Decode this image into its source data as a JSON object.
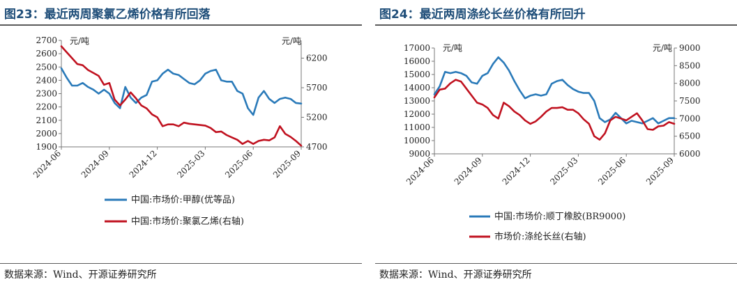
{
  "panels": [
    {
      "title": "图23：最近两周聚氯乙烯价格有所回落",
      "source": "数据来源：Wind、开源证券研究所",
      "unit_left": "元/吨",
      "unit_right": "元/吨",
      "colors": {
        "series0": "#2a7ab9",
        "series1": "#c0111f"
      }
    },
    {
      "title": "图24：最近两周涤纶长丝价格有所回升",
      "source": "数据来源：Wind、开源证券研究所",
      "unit_left": "元/吨",
      "unit_right": "元/吨",
      "colors": {
        "series0": "#2a7ab9",
        "series1": "#c0111f"
      }
    }
  ],
  "chart_data": [
    {
      "type": "line",
      "title": "",
      "x_tick_labels": [
        "2024-06",
        "2024-09",
        "2024-12",
        "2025-03",
        "2025-06",
        "2025-09"
      ],
      "ylim_left": [
        1900,
        2700
      ],
      "yticks_left": [
        1900,
        2000,
        2100,
        2200,
        2300,
        2400,
        2500,
        2600,
        2700
      ],
      "ylim_right": [
        4700,
        6500
      ],
      "yticks_right": [
        4700,
        5200,
        5700,
        6200
      ],
      "grid": false,
      "legend_position": "bottom",
      "series": [
        {
          "name": "中国:市场价:甲醇(优等品)",
          "axis": "left",
          "values": [
            2490,
            2420,
            2360,
            2360,
            2380,
            2350,
            2330,
            2300,
            2330,
            2300,
            2230,
            2190,
            2350,
            2270,
            2230,
            2270,
            2290,
            2390,
            2400,
            2450,
            2480,
            2450,
            2440,
            2410,
            2380,
            2370,
            2400,
            2450,
            2470,
            2480,
            2400,
            2390,
            2390,
            2320,
            2300,
            2190,
            2140,
            2270,
            2320,
            2260,
            2230,
            2260,
            2270,
            2260,
            2230,
            2225
          ]
        },
        {
          "name": "中国:市场价:聚氯乙烯(右轴)",
          "axis": "right",
          "values": [
            6400,
            6300,
            6200,
            6100,
            6080,
            6000,
            5950,
            5900,
            5750,
            5780,
            5500,
            5400,
            5500,
            5620,
            5520,
            5400,
            5350,
            5250,
            5200,
            5050,
            5080,
            5080,
            5050,
            5110,
            5090,
            5080,
            5070,
            5060,
            5020,
            4950,
            4960,
            4900,
            4860,
            4820,
            4750,
            4800,
            4750,
            4800,
            4820,
            4810,
            4860,
            5050,
            4920,
            4870,
            4800,
            4720
          ]
        }
      ]
    },
    {
      "type": "line",
      "title": "",
      "x_tick_labels": [
        "2024-06",
        "2024-09",
        "2024-12",
        "2025-03",
        "2025-06",
        "2025-09"
      ],
      "ylim_left": [
        9000,
        17000
      ],
      "yticks_left": [
        9000,
        10000,
        11000,
        12000,
        13000,
        14000,
        15000,
        16000,
        17000
      ],
      "ylim_right": [
        6000,
        9000
      ],
      "yticks_right": [
        6000,
        6500,
        7000,
        7500,
        8000,
        8500,
        9000
      ],
      "grid": false,
      "legend_position": "bottom",
      "series": [
        {
          "name": "中国:市场价:顺丁橡胶(BR9000)",
          "axis": "left",
          "values": [
            13500,
            14100,
            15200,
            15100,
            15200,
            15100,
            14900,
            14400,
            14300,
            14900,
            15100,
            15800,
            16300,
            15900,
            15300,
            14500,
            13800,
            13200,
            13400,
            13500,
            13400,
            13500,
            14300,
            14500,
            14600,
            14200,
            13900,
            13700,
            13600,
            13600,
            13000,
            11700,
            11400,
            11600,
            12100,
            11700,
            11300,
            11500,
            11400,
            11300,
            11500,
            11700,
            11300,
            11500,
            11700,
            11700
          ]
        },
        {
          "name": "市场价:涤纶长丝(右轴)",
          "axis": "right",
          "values": [
            7600,
            7820,
            7850,
            8000,
            8100,
            8050,
            7850,
            7650,
            7450,
            7400,
            7300,
            7100,
            7000,
            7450,
            7350,
            7200,
            7100,
            6950,
            6850,
            6920,
            7050,
            7200,
            7300,
            7300,
            7320,
            7250,
            7250,
            7150,
            6980,
            6850,
            6500,
            6400,
            6580,
            6950,
            7050,
            7000,
            6950,
            7050,
            7150,
            6950,
            6700,
            6680,
            6780,
            6800,
            6900,
            6850
          ]
        }
      ]
    }
  ]
}
